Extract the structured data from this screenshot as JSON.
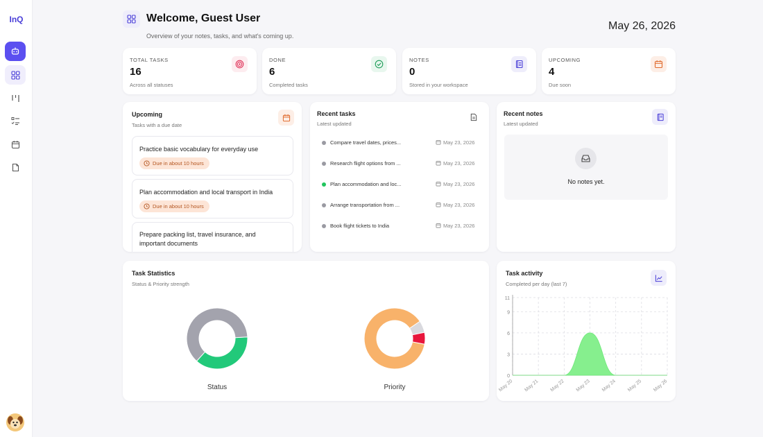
{
  "app": {
    "logo": "InQ"
  },
  "sidebar": {
    "items": [
      {
        "icon": "robot-icon",
        "active": true
      },
      {
        "icon": "dashboard-grid-icon",
        "active": false,
        "soft": true
      },
      {
        "icon": "kanban-icon",
        "active": false
      },
      {
        "icon": "checklist-icon",
        "active": false
      },
      {
        "icon": "calendar-icon",
        "active": false
      },
      {
        "icon": "file-icon",
        "active": false
      }
    ]
  },
  "header": {
    "title": "Welcome, Guest User",
    "subtitle": "Overview of your notes, tasks, and what's coming up.",
    "date": "May 26, 2026"
  },
  "stats": [
    {
      "label": "TOTAL TASKS",
      "value": "16",
      "note": "Across all statuses",
      "icon": "target-icon",
      "color": "#e0345a",
      "bg": "#fdecef"
    },
    {
      "label": "DONE",
      "value": "6",
      "note": "Completed tasks",
      "icon": "check-circle-icon",
      "color": "#1f9d5a",
      "bg": "#e8f7ee"
    },
    {
      "label": "NOTES",
      "value": "0",
      "note": "Stored in your workspace",
      "icon": "notebook-icon",
      "color": "#4a3fd8",
      "bg": "#eeedfb"
    },
    {
      "label": "UPCOMING",
      "value": "4",
      "note": "Due soon",
      "icon": "calendar-icon",
      "color": "#e06a2c",
      "bg": "#fdeee6"
    }
  ],
  "upcoming": {
    "title": "Upcoming",
    "subtitle": "Tasks with a due date",
    "items": [
      {
        "title": "Practice basic vocabulary for everyday use",
        "badge": "Due in about 10 hours"
      },
      {
        "title": "Plan accommodation and local transport in India",
        "badge": "Due in about 10 hours"
      },
      {
        "title": "Prepare packing list, travel insurance, and important documents",
        "badge": ""
      }
    ]
  },
  "recent_tasks": {
    "title": "Recent tasks",
    "subtitle": "Latest updated",
    "items": [
      {
        "name": "Compare travel dates, prices...",
        "date": "May 23, 2026",
        "status_color": "#9a9aa2"
      },
      {
        "name": "Research flight options from ...",
        "date": "May 23, 2026",
        "status_color": "#9a9aa2"
      },
      {
        "name": "Plan accommodation and loc...",
        "date": "May 23, 2026",
        "status_color": "#22c55e"
      },
      {
        "name": "Arrange transportation from ...",
        "date": "May 23, 2026",
        "status_color": "#9a9aa2"
      },
      {
        "name": "Book flight tickets to India",
        "date": "May 23, 2026",
        "status_color": "#9a9aa2"
      }
    ]
  },
  "recent_notes": {
    "title": "Recent notes",
    "subtitle": "Latest updated",
    "empty_text": "No notes yet."
  },
  "task_statistics": {
    "title": "Task Statistics",
    "subtitle": "Status & Priority strength"
  },
  "task_activity": {
    "title": "Task activity",
    "subtitle": "Completed per day (last 7)"
  },
  "chart_data": [
    {
      "type": "pie",
      "title": "Status",
      "values": [
        10,
        6
      ],
      "colors": [
        "#a3a3ad",
        "#22c97a"
      ]
    },
    {
      "type": "pie",
      "title": "Priority",
      "values": [
        14,
        1,
        1
      ],
      "colors": [
        "#f8b26a",
        "#d9d9de",
        "#e8163c"
      ]
    },
    {
      "type": "area",
      "x": [
        "May 20",
        "May 21",
        "May 22",
        "May 23",
        "May 24",
        "May 25",
        "May 26"
      ],
      "values": [
        0,
        0,
        0,
        6,
        0,
        0,
        0
      ],
      "yticks": [
        "0",
        "3",
        "6",
        "9",
        "11"
      ],
      "ylim": [
        0,
        11
      ],
      "grid": true,
      "color": "#86ef8e"
    }
  ]
}
